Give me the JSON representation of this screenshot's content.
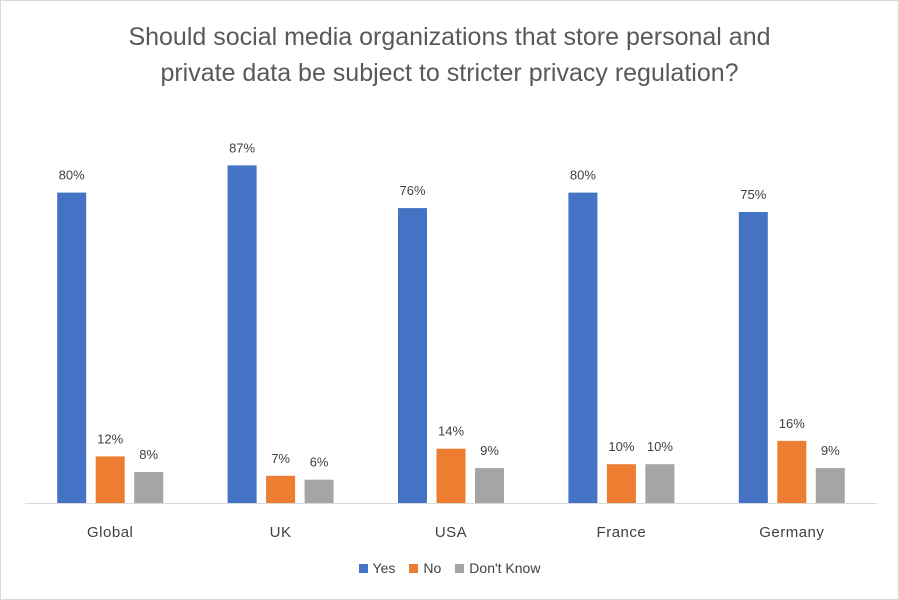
{
  "chart_data": {
    "type": "bar",
    "title_lines": [
      "Should social media organizations that store personal and",
      "private data be subject to stricter privacy regulation?"
    ],
    "categories": [
      "Global",
      "UK",
      "USA",
      "France",
      "Germany"
    ],
    "series": [
      {
        "name": "Yes",
        "color": "#4472c4",
        "values": [
          80,
          87,
          76,
          80,
          75
        ],
        "labels": [
          "80%",
          "87%",
          "76%",
          "80%",
          "75%"
        ]
      },
      {
        "name": "No",
        "color": "#ed7d31",
        "values": [
          12,
          7,
          14,
          10,
          16
        ],
        "labels": [
          "12%",
          "7%",
          "14%",
          "10%",
          "16%"
        ]
      },
      {
        "name": "Don't Know",
        "color": "#a5a5a5",
        "values": [
          8,
          6,
          9,
          10,
          9
        ],
        "labels": [
          "8%",
          "6%",
          "9%",
          "10%",
          "9%"
        ]
      }
    ],
    "ylim": [
      0,
      100
    ],
    "grid": false,
    "legend_position": "bottom",
    "data_labels": true
  }
}
